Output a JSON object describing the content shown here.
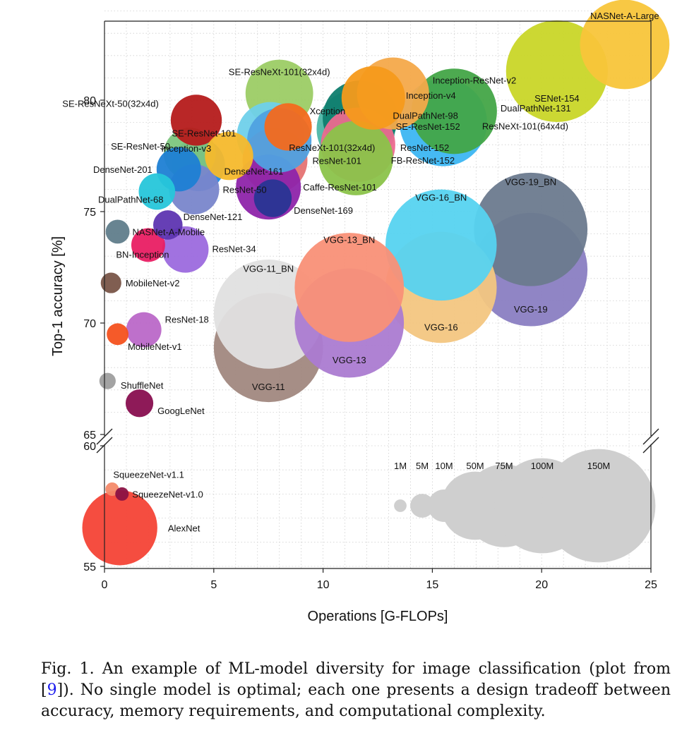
{
  "chart_data": {
    "type": "scatter",
    "variant": "bubble",
    "xlabel": "Operations [G-FLOPs]",
    "ylabel": "Top-1 accuracy [%]",
    "xlim": [
      0,
      25
    ],
    "ylim_upper": [
      65,
      84
    ],
    "ylim_lower": [
      55,
      60
    ],
    "axis_break": true,
    "grid": true,
    "xticks": [
      "0",
      "5",
      "10",
      "15",
      "20",
      "25"
    ],
    "yticks": [
      "55",
      "60",
      "65",
      "70",
      "75",
      "80"
    ],
    "points": [
      {
        "name": "NASNet-A-Large",
        "x": 23.8,
        "y": 82.5,
        "params_M": 88,
        "color": "#f8c53a"
      },
      {
        "name": "SENet-154",
        "x": 20.7,
        "y": 81.3,
        "params_M": 115,
        "color": "#c9d628"
      },
      {
        "name": "SE-ResNeXt-101(32x4d)",
        "x": 8.0,
        "y": 80.3,
        "params_M": 49,
        "color": "#9ccc65"
      },
      {
        "name": "Inception-ResNet-v2",
        "x": 13.2,
        "y": 80.3,
        "params_M": 56,
        "color": "#f4a94a"
      },
      {
        "name": "Inception-v4",
        "x": 12.3,
        "y": 80.1,
        "params_M": 43,
        "color": "#f59a1b"
      },
      {
        "name": "DualPathNet-131",
        "x": 16.0,
        "y": 79.5,
        "params_M": 80,
        "color": "#43a547"
      },
      {
        "name": "DualPathNet-98",
        "x": 11.7,
        "y": 79.2,
        "params_M": 61,
        "color": "#0f7d6e"
      },
      {
        "name": "SE-ResNeXt-50(32x4d)",
        "x": 4.2,
        "y": 79.1,
        "params_M": 27,
        "color": "#b51b1b"
      },
      {
        "name": "ResNeXt-101(64x4d)",
        "x": 15.5,
        "y": 79.0,
        "params_M": 84,
        "color": "#3cb6f2"
      },
      {
        "name": "Xception",
        "x": 8.4,
        "y": 78.8,
        "params_M": 23,
        "color": "#f36a1d"
      },
      {
        "name": "SE-ResNet-152",
        "x": 11.5,
        "y": 78.7,
        "params_M": 67,
        "color": "#4db6a6"
      },
      {
        "name": "SE-ResNet-101",
        "x": 7.6,
        "y": 78.4,
        "params_M": 49,
        "color": "#6fd0ea"
      },
      {
        "name": "ResNeXt-101(32x4d)",
        "x": 8.0,
        "y": 78.2,
        "params_M": 44,
        "color": "#4fa1e0"
      },
      {
        "name": "ResNet-152",
        "x": 11.6,
        "y": 78.0,
        "params_M": 60,
        "color": "#ec6a8e"
      },
      {
        "name": "SE-ResNet-50",
        "x": 3.9,
        "y": 77.6,
        "params_M": 28,
        "color": "#7dc67e"
      },
      {
        "name": "Inception-v3",
        "x": 5.7,
        "y": 77.5,
        "params_M": 24,
        "color": "#f6b92c"
      },
      {
        "name": "FB-ResNet-152",
        "x": 11.5,
        "y": 77.4,
        "params_M": 60,
        "color": "#8bc34a"
      },
      {
        "name": "ResNet-101",
        "x": 7.8,
        "y": 77.3,
        "params_M": 45,
        "color": "#e57373"
      },
      {
        "name": "DenseNet-161",
        "x": 4.3,
        "y": 77.1,
        "params_M": 29,
        "color": "#1d88e5"
      },
      {
        "name": "DenseNet-201",
        "x": 3.4,
        "y": 76.9,
        "params_M": 20,
        "color": "#1e7fd4"
      },
      {
        "name": "Caffe-ResNet-101",
        "x": 7.5,
        "y": 76.1,
        "params_M": 45,
        "color": "#8e24aa"
      },
      {
        "name": "ResNet-50",
        "x": 4.1,
        "y": 76.0,
        "params_M": 26,
        "color": "#7986cb"
      },
      {
        "name": "DualPathNet-68",
        "x": 2.4,
        "y": 75.9,
        "params_M": 13,
        "color": "#26c6da"
      },
      {
        "name": "DenseNet-169",
        "x": 7.7,
        "y": 75.6,
        "params_M": 14,
        "color": "#283593"
      },
      {
        "name": "DenseNet-121",
        "x": 2.9,
        "y": 74.4,
        "params_M": 8,
        "color": "#5e35b1"
      },
      {
        "name": "NASNet-A-Mobile",
        "x": 0.6,
        "y": 74.1,
        "params_M": 5,
        "color": "#607d8b"
      },
      {
        "name": "BN-Inception",
        "x": 2.0,
        "y": 73.5,
        "params_M": 11,
        "color": "#e91e63"
      },
      {
        "name": "ResNet-34",
        "x": 3.7,
        "y": 73.3,
        "params_M": 22,
        "color": "#9c6ade"
      },
      {
        "name": "MobileNet-v2",
        "x": 0.3,
        "y": 71.8,
        "params_M": 3.5,
        "color": "#795548"
      },
      {
        "name": "ResNet-18",
        "x": 1.8,
        "y": 69.7,
        "params_M": 12,
        "color": "#ba68c8"
      },
      {
        "name": "MobileNet-v1",
        "x": 0.6,
        "y": 69.5,
        "params_M": 4,
        "color": "#f4511e"
      },
      {
        "name": "ShuffleNet",
        "x": 0.14,
        "y": 67.4,
        "params_M": 2,
        "color": "#9e9e9e"
      },
      {
        "name": "GoogLeNet",
        "x": 1.6,
        "y": 66.4,
        "params_M": 7,
        "color": "#880e4f"
      },
      {
        "name": "VGG-11",
        "x": 7.5,
        "y": 68.9,
        "params_M": 133,
        "color": "#a1887f"
      },
      {
        "name": "VGG-11_BN",
        "x": 7.5,
        "y": 70.4,
        "params_M": 133,
        "color": "#e0e0e0"
      },
      {
        "name": "VGG-13",
        "x": 11.2,
        "y": 70.0,
        "params_M": 133,
        "color": "#ab7bd1"
      },
      {
        "name": "VGG-13_BN",
        "x": 11.2,
        "y": 71.6,
        "params_M": 133,
        "color": "#f99077"
      },
      {
        "name": "VGG-16",
        "x": 15.4,
        "y": 71.6,
        "params_M": 138,
        "color": "#f3c681"
      },
      {
        "name": "VGG-16_BN",
        "x": 15.4,
        "y": 73.5,
        "params_M": 138,
        "color": "#56d3f0"
      },
      {
        "name": "VGG-19",
        "x": 19.5,
        "y": 72.4,
        "params_M": 144,
        "color": "#8a7ec2"
      },
      {
        "name": "VGG-19_BN",
        "x": 19.5,
        "y": 74.2,
        "params_M": 144,
        "color": "#6b7a8e"
      },
      {
        "name": "SqueezeNet-v1.1",
        "x": 0.35,
        "y": 58.2,
        "params_M": 1.2,
        "color": "#f48a6a"
      },
      {
        "name": "SqueezeNet-v1.0",
        "x": 0.8,
        "y": 58.0,
        "params_M": 1.2,
        "color": "#8b1245"
      },
      {
        "name": "AlexNet",
        "x": 0.7,
        "y": 56.6,
        "params_M": 61,
        "color": "#f44336"
      }
    ],
    "size_legend": [
      "1M",
      "5M",
      "10M",
      "50M",
      "75M",
      "100M",
      "150M"
    ]
  },
  "caption": {
    "prefix": "Fig. 1.   An example of ML-model diversity for image classification (plot from [",
    "ref": "9",
    "suffix": "]). No single model is optimal; each one presents a design tradeoff between accuracy, memory requirements, and computational complexity."
  }
}
